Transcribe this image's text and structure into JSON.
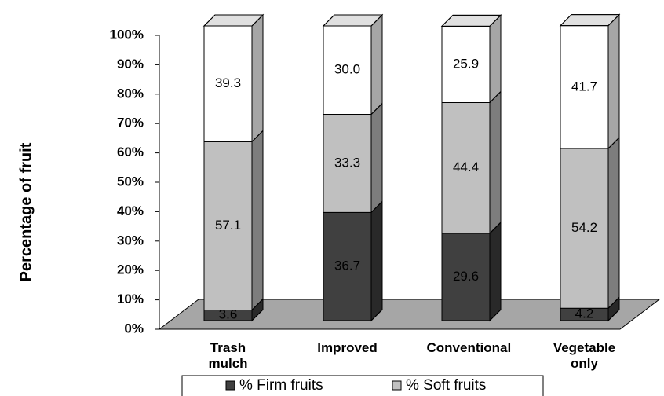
{
  "chart_data": {
    "type": "stacked_bar_3d",
    "y_axis_label": "Percentage of fruit",
    "categories": [
      "Trash mulch",
      "Improved",
      "Conventional",
      "Vegetable only"
    ],
    "series": [
      {
        "name": "% Firm fruits",
        "color": "#404040",
        "values": [
          3.6,
          36.7,
          29.6,
          4.2
        ],
        "value_labels": [
          "3.6",
          "36.7",
          "29.6",
          "4.2"
        ]
      },
      {
        "name": "% Soft fruits",
        "color": "#c0c0c0",
        "values": [
          57.1,
          33.3,
          44.4,
          54.2
        ],
        "value_labels": [
          "57.1",
          "33.3",
          "44.4",
          "54.2"
        ]
      },
      {
        "color": "#ffffff",
        "values": [
          39.3,
          30.0,
          25.9,
          41.7
        ],
        "value_labels": [
          "39.3",
          "30.0",
          "25.9",
          "41.7"
        ]
      }
    ],
    "ylim": [
      0,
      100
    ],
    "yticks": [
      {
        "value": 0,
        "label": "0%"
      },
      {
        "value": 10,
        "label": "10%"
      },
      {
        "value": 20,
        "label": "20%"
      },
      {
        "value": 30,
        "label": "30%"
      },
      {
        "value": 40,
        "label": "40%"
      },
      {
        "value": 50,
        "label": "50%"
      },
      {
        "value": 60,
        "label": "60%"
      },
      {
        "value": 70,
        "label": "70%"
      },
      {
        "value": 80,
        "label": "80%"
      },
      {
        "value": 90,
        "label": "90%"
      },
      {
        "value": 100,
        "label": "100%"
      }
    ]
  }
}
